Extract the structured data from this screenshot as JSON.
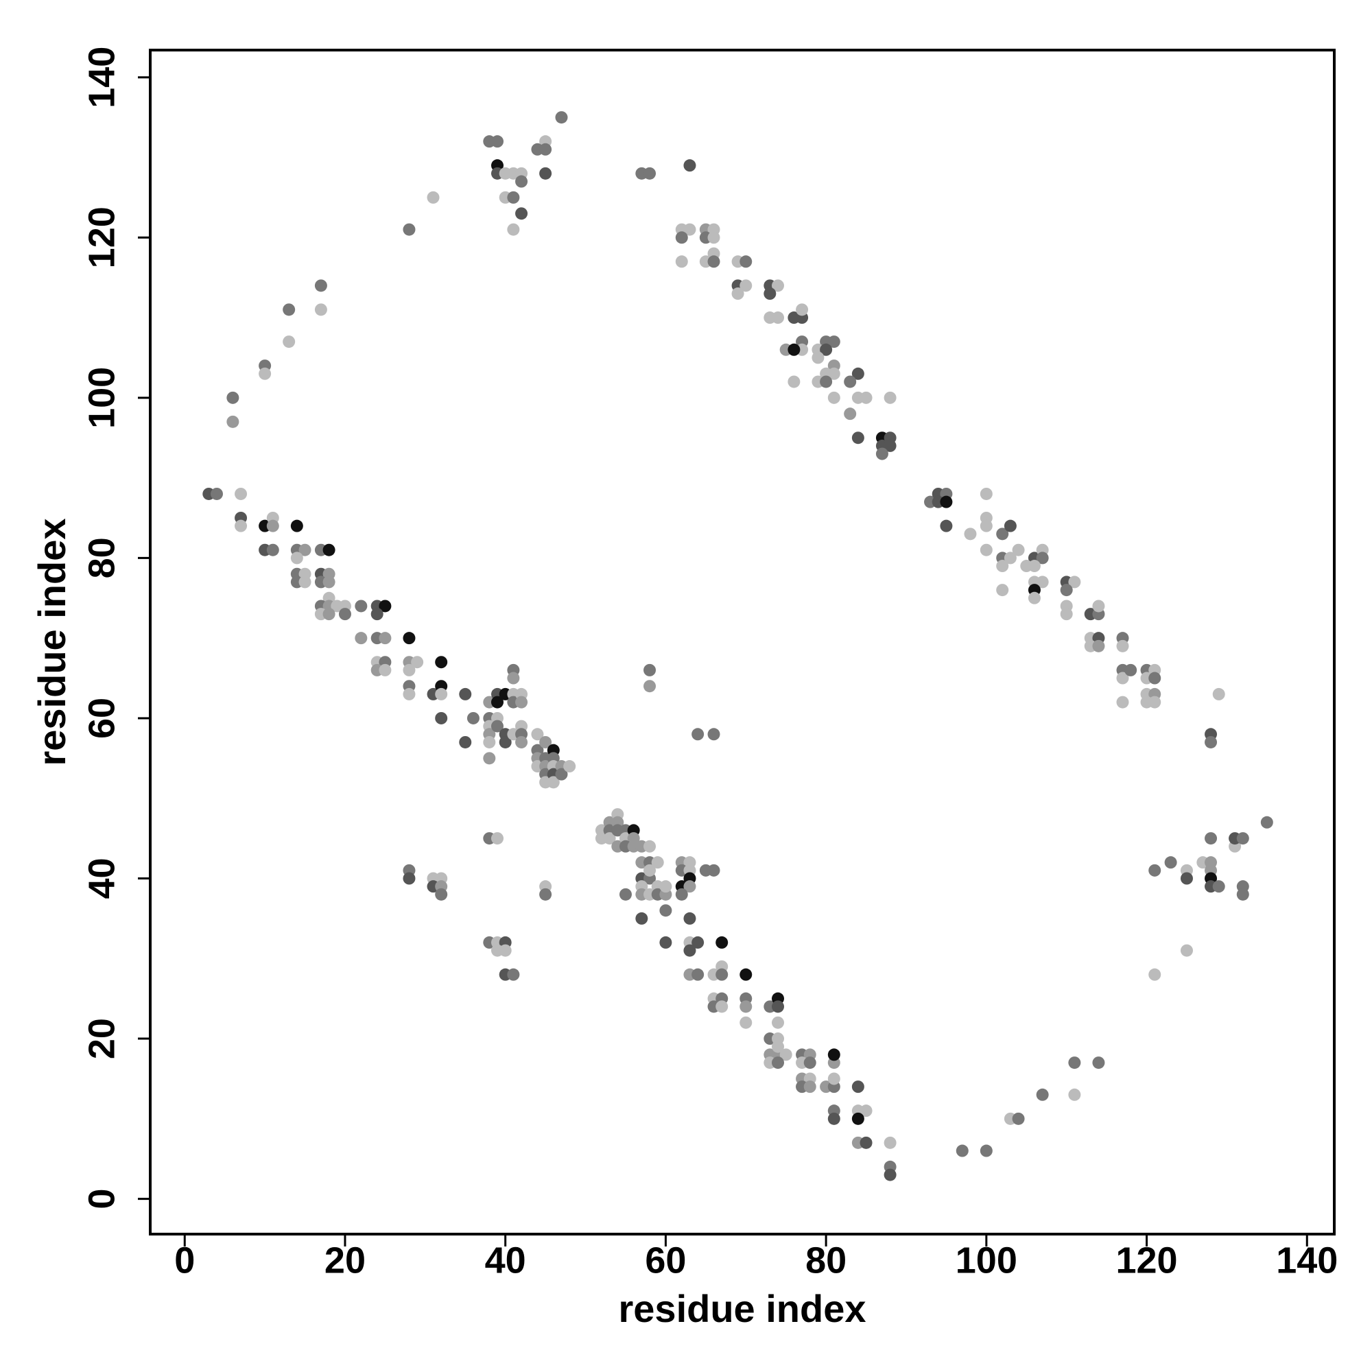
{
  "chart_data": {
    "type": "scatter",
    "x_label": "residue index",
    "y_label": "residue index",
    "xlim": [
      -4.3,
      143.4
    ],
    "ylim": [
      -4.4,
      143.4
    ],
    "xticks": [
      0,
      20,
      40,
      60,
      80,
      100,
      120,
      140
    ],
    "yticks": [
      0,
      20,
      40,
      60,
      80,
      100,
      120,
      140
    ],
    "x": [
      3,
      4,
      7,
      7,
      7,
      10,
      11,
      11,
      10,
      11,
      14,
      14,
      15,
      14,
      14,
      15,
      14,
      15,
      17,
      18,
      17,
      18,
      17,
      18,
      18,
      17,
      18,
      19,
      17,
      18,
      20,
      20,
      22,
      24,
      25,
      24,
      22,
      24,
      25,
      24,
      25,
      24,
      25,
      28,
      28,
      29,
      28,
      28,
      28,
      31,
      32,
      32,
      32,
      32,
      35,
      35,
      36,
      38,
      38,
      38,
      38,
      38,
      38,
      39,
      39,
      39,
      39,
      40,
      40,
      40,
      41,
      41,
      41,
      41,
      42,
      42,
      41,
      42,
      42,
      42,
      44,
      44,
      45,
      44,
      44,
      45,
      45,
      45,
      45,
      46,
      46,
      46,
      46,
      46,
      47,
      47,
      48,
      52,
      52,
      53,
      53,
      53,
      54,
      54,
      54,
      54,
      55,
      55,
      56,
      56,
      55,
      56,
      57,
      58,
      57,
      58,
      59,
      57,
      58,
      58,
      57,
      59,
      57,
      58,
      59,
      60,
      60,
      55,
      57,
      60,
      60,
      62,
      63,
      62,
      63,
      63,
      62,
      63,
      62,
      63,
      63,
      64,
      63,
      67,
      63,
      64,
      66,
      67,
      67,
      66,
      67,
      66,
      67,
      70,
      70,
      70,
      70,
      73,
      74,
      74,
      74,
      73,
      74,
      73,
      74,
      75,
      73,
      74,
      74,
      77,
      78,
      77,
      78,
      77,
      78,
      77,
      78,
      80,
      81,
      81,
      81,
      81,
      81,
      81,
      84,
      84,
      85,
      84,
      84,
      85,
      88,
      88,
      88,
      97,
      100,
      103,
      104,
      107,
      111,
      111,
      114,
      121,
      125,
      121,
      123,
      125,
      125,
      127,
      128,
      128,
      128,
      128,
      128,
      129,
      131,
      131,
      132,
      132,
      132,
      135,
      128,
      128,
      129,
      117,
      117,
      117,
      117,
      118,
      117,
      120,
      121,
      120,
      121,
      120,
      121,
      120,
      121,
      113,
      114,
      114,
      113,
      114,
      113,
      114,
      110,
      111,
      110,
      110,
      110,
      106,
      107,
      107,
      106,
      105,
      106,
      107,
      106,
      106,
      102,
      103,
      100,
      100,
      100,
      98,
      100,
      102,
      103,
      104,
      102,
      102,
      93,
      94,
      95,
      94,
      95,
      95,
      87,
      88,
      87,
      88,
      87,
      84,
      84,
      84,
      85,
      88,
      83,
      83,
      80,
      81,
      79,
      80,
      79,
      81,
      81,
      80,
      79,
      80,
      81,
      76,
      77,
      77,
      77,
      77,
      75,
      76,
      76,
      73,
      74,
      73,
      73,
      74,
      69,
      70,
      69,
      70,
      69,
      62,
      63,
      62,
      65,
      66,
      65,
      66,
      66,
      65,
      66,
      62,
      63,
      57,
      58,
      47,
      45,
      44,
      45,
      38,
      39,
      39,
      39,
      40,
      41,
      42,
      42,
      45,
      40,
      41,
      42,
      41,
      31,
      28,
      17,
      17,
      13,
      13,
      10,
      10,
      6,
      6,
      38,
      39,
      28,
      28,
      31,
      32,
      31,
      32,
      32,
      45,
      45,
      38,
      39,
      40,
      39,
      40,
      40,
      41,
      58,
      58,
      64,
      66,
      65,
      66
    ],
    "values": [
      88,
      88,
      88,
      85,
      84,
      84,
      85,
      84,
      81,
      81,
      84,
      81,
      81,
      80,
      78,
      78,
      77,
      77,
      81,
      81,
      78,
      78,
      77,
      77,
      75,
      74,
      74,
      74,
      73,
      73,
      74,
      73,
      74,
      74,
      74,
      73,
      70,
      70,
      70,
      67,
      67,
      66,
      66,
      70,
      67,
      67,
      66,
      64,
      63,
      63,
      67,
      64,
      63,
      60,
      63,
      57,
      60,
      62,
      60,
      59,
      58,
      57,
      55,
      63,
      62,
      60,
      59,
      63,
      58,
      57,
      66,
      65,
      63,
      62,
      63,
      62,
      58,
      59,
      58,
      57,
      58,
      56,
      57,
      55,
      54,
      55,
      54,
      53,
      52,
      56,
      55,
      54,
      53,
      52,
      54,
      53,
      54,
      46,
      45,
      47,
      46,
      45,
      48,
      47,
      46,
      44,
      46,
      45,
      46,
      45,
      44,
      44,
      44,
      44,
      42,
      42,
      42,
      40,
      40,
      41,
      39,
      39,
      38,
      38,
      38,
      38,
      39,
      38,
      35,
      36,
      32,
      42,
      42,
      41,
      41,
      40,
      39,
      39,
      38,
      35,
      32,
      32,
      31,
      32,
      28,
      28,
      28,
      29,
      28,
      25,
      25,
      24,
      24,
      28,
      25,
      24,
      22,
      24,
      25,
      24,
      22,
      20,
      20,
      18,
      18,
      18,
      17,
      17,
      19,
      18,
      18,
      17,
      17,
      15,
      15,
      14,
      14,
      14,
      14,
      15,
      17,
      18,
      11,
      10,
      14,
      11,
      11,
      10,
      7,
      7,
      7,
      4,
      3,
      6,
      6,
      10,
      10,
      13,
      17,
      13,
      17,
      28,
      31,
      41,
      42,
      41,
      40,
      42,
      42,
      45,
      41,
      40,
      39,
      39,
      44,
      45,
      45,
      39,
      38,
      47,
      58,
      57,
      63,
      70,
      69,
      66,
      65,
      66,
      62,
      66,
      66,
      65,
      65,
      63,
      63,
      62,
      62,
      73,
      73,
      74,
      70,
      70,
      69,
      69,
      77,
      77,
      76,
      74,
      73,
      80,
      81,
      80,
      79,
      79,
      77,
      77,
      76,
      75,
      83,
      84,
      88,
      85,
      84,
      83,
      81,
      80,
      80,
      81,
      79,
      76,
      87,
      88,
      88,
      87,
      87,
      84,
      95,
      95,
      94,
      94,
      93,
      95,
      103,
      100,
      100,
      100,
      102,
      98,
      107,
      107,
      106,
      106,
      105,
      104,
      103,
      103,
      102,
      102,
      100,
      110,
      110,
      111,
      107,
      106,
      106,
      106,
      102,
      114,
      114,
      113,
      110,
      110,
      117,
      117,
      114,
      114,
      113,
      121,
      121,
      120,
      121,
      121,
      120,
      120,
      118,
      117,
      117,
      117,
      129,
      128,
      128,
      135,
      132,
      131,
      131,
      132,
      132,
      129,
      128,
      128,
      128,
      128,
      127,
      128,
      125,
      125,
      123,
      121,
      125,
      121,
      114,
      111,
      111,
      107,
      104,
      103,
      100,
      97,
      45,
      45,
      41,
      40,
      40,
      40,
      39,
      39,
      38,
      39,
      38,
      32,
      32,
      32,
      31,
      31,
      28,
      28,
      66,
      64,
      58,
      58,
      41,
      41
    ],
    "colors": [
      "#555555",
      "#777777",
      "#bbbbbb",
      "#555555",
      "#bbbbbb",
      "#111111",
      "#bbbbbb",
      "#999999",
      "#555555",
      "#777777",
      "#111111",
      "#777777",
      "#999999",
      "#bbbbbb",
      "#777777",
      "#bbbbbb",
      "#777777",
      "#bbbbbb",
      "#777777",
      "#111111",
      "#555555",
      "#999999",
      "#777777",
      "#999999",
      "#bbbbbb",
      "#777777",
      "#999999",
      "#bbbbbb",
      "#bbbbbb",
      "#999999",
      "#bbbbbb",
      "#777777",
      "#777777",
      "#555555",
      "#111111",
      "#555555",
      "#999999",
      "#777777",
      "#999999",
      "#bbbbbb",
      "#777777",
      "#999999",
      "#bbbbbb",
      "#111111",
      "#999999",
      "#bbbbbb",
      "#bbbbbb",
      "#777777",
      "#bbbbbb",
      "#555555",
      "#111111",
      "#111111",
      "#bbbbbb",
      "#555555",
      "#555555",
      "#555555",
      "#777777",
      "#999999",
      "#777777",
      "#bbbbbb",
      "#999999",
      "#bbbbbb",
      "#999999",
      "#555555",
      "#111111",
      "#bbbbbb",
      "#777777",
      "#111111",
      "#555555",
      "#555555",
      "#777777",
      "#999999",
      "#bbbbbb",
      "#777777",
      "#bbbbbb",
      "#999999",
      "#bbbbbb",
      "#bbbbbb",
      "#777777",
      "#999999",
      "#bbbbbb",
      "#777777",
      "#999999",
      "#999999",
      "#bbbbbb",
      "#777777",
      "#999999",
      "#777777",
      "#bbbbbb",
      "#111111",
      "#777777",
      "#bbbbbb",
      "#555555",
      "#bbbbbb",
      "#999999",
      "#777777",
      "#bbbbbb",
      "#bbbbbb",
      "#bbbbbb",
      "#999999",
      "#777777",
      "#bbbbbb",
      "#bbbbbb",
      "#999999",
      "#777777",
      "#999999",
      "#777777",
      "#bbbbbb",
      "#111111",
      "#999999",
      "#777777",
      "#999999",
      "#999999",
      "#bbbbbb",
      "#999999",
      "#777777",
      "#bbbbbb",
      "#555555",
      "#777777",
      "#bbbbbb",
      "#bbbbbb",
      "#bbbbbb",
      "#999999",
      "#bbbbbb",
      "#777777",
      "#999999",
      "#bbbbbb",
      "#777777",
      "#555555",
      "#777777",
      "#555555",
      "#999999",
      "#bbbbbb",
      "#777777",
      "#bbbbbb",
      "#111111",
      "#111111",
      "#999999",
      "#777777",
      "#555555",
      "#bbbbbb",
      "#555555",
      "#555555",
      "#111111",
      "#999999",
      "#777777",
      "#bbbbbb",
      "#bbbbbb",
      "#777777",
      "#bbbbbb",
      "#777777",
      "#777777",
      "#bbbbbb",
      "#111111",
      "#777777",
      "#999999",
      "#bbbbbb",
      "#777777",
      "#111111",
      "#555555",
      "#bbbbbb",
      "#777777",
      "#bbbbbb",
      "#999999",
      "#999999",
      "#bbbbbb",
      "#bbbbbb",
      "#777777",
      "#bbbbbb",
      "#777777",
      "#999999",
      "#bbbbbb",
      "#777777",
      "#999999",
      "#bbbbbb",
      "#777777",
      "#999999",
      "#999999",
      "#777777",
      "#bbbbbb",
      "#999999",
      "#111111",
      "#777777",
      "#555555",
      "#555555",
      "#bbbbbb",
      "#bbbbbb",
      "#111111",
      "#999999",
      "#555555",
      "#bbbbbb",
      "#777777",
      "#555555",
      "#777777",
      "#777777",
      "#bbbbbb",
      "#777777",
      "#777777",
      "#777777",
      "#bbbbbb",
      "#777777",
      "#bbbbbb",
      "#bbbbbb",
      "#777777",
      "#777777",
      "#bbbbbb",
      "#555555",
      "#bbbbbb",
      "#999999",
      "#777777",
      "#999999",
      "#111111",
      "#555555",
      "#777777",
      "#bbbbbb",
      "#555555",
      "#777777",
      "#777777",
      "#777777",
      "#777777",
      "#555555",
      "#777777",
      "#bbbbbb",
      "#777777",
      "#bbbbbb",
      "#777777",
      "#bbbbbb",
      "#777777",
      "#bbbbbb",
      "#777777",
      "#bbbbbb",
      "#bbbbbb",
      "#777777",
      "#bbbbbb",
      "#999999",
      "#bbbbbb",
      "#bbbbbb",
      "#555555",
      "#777777",
      "#bbbbbb",
      "#bbbbbb",
      "#555555",
      "#bbbbbb",
      "#999999",
      "#555555",
      "#bbbbbb",
      "#777777",
      "#bbbbbb",
      "#bbbbbb",
      "#555555",
      "#bbbbbb",
      "#777777",
      "#bbbbbb",
      "#bbbbbb",
      "#bbbbbb",
      "#bbbbbb",
      "#111111",
      "#bbbbbb",
      "#777777",
      "#555555",
      "#bbbbbb",
      "#bbbbbb",
      "#bbbbbb",
      "#bbbbbb",
      "#bbbbbb",
      "#777777",
      "#bbbbbb",
      "#bbbbbb",
      "#bbbbbb",
      "#bbbbbb",
      "#777777",
      "#555555",
      "#777777",
      "#555555",
      "#111111",
      "#555555",
      "#111111",
      "#555555",
      "#555555",
      "#555555",
      "#777777",
      "#555555",
      "#555555",
      "#bbbbbb",
      "#bbbbbb",
      "#bbbbbb",
      "#777777",
      "#999999",
      "#777777",
      "#777777",
      "#bbbbbb",
      "#555555",
      "#bbbbbb",
      "#999999",
      "#bbbbbb",
      "#bbbbbb",
      "#bbbbbb",
      "#777777",
      "#bbbbbb",
      "#555555",
      "#555555",
      "#bbbbbb",
      "#777777",
      "#bbbbbb",
      "#999999",
      "#111111",
      "#bbbbbb",
      "#555555",
      "#bbbbbb",
      "#555555",
      "#bbbbbb",
      "#bbbbbb",
      "#bbbbbb",
      "#777777",
      "#555555",
      "#bbbbbb",
      "#bbbbbb",
      "#bbbbbb",
      "#bbbbbb",
      "#777777",
      "#999999",
      "#bbbbbb",
      "#777777",
      "#bbbbbb",
      "#bbbbbb",
      "#bbbbbb",
      "#777777",
      "#bbbbbb",
      "#555555",
      "#777777",
      "#777777",
      "#777777",
      "#bbbbbb",
      "#777777",
      "#777777",
      "#777777",
      "#777777",
      "#111111",
      "#555555",
      "#bbbbbb",
      "#bbbbbb",
      "#bbbbbb",
      "#777777",
      "#555555",
      "#bbbbbb",
      "#777777",
      "#555555",
      "#bbbbbb",
      "#bbbbbb",
      "#777777",
      "#777777",
      "#bbbbbb",
      "#777777",
      "#bbbbbb",
      "#777777",
      "#bbbbbb",
      "#777777",
      "#999999",
      "#777777",
      "#bbbbbb",
      "#777777",
      "#555555",
      "#bbbbbb",
      "#bbbbbb",
      "#555555",
      "#999999",
      "#777777",
      "#bbbbbb",
      "#777777",
      "#777777",
      "#bbbbbb",
      "#555555",
      "#bbbbbb",
      "#bbbbbb",
      "#555555",
      "#777777",
      "#777777",
      "#999999",
      "#777777",
      "#777777",
      "#777777",
      "#777777"
    ]
  }
}
